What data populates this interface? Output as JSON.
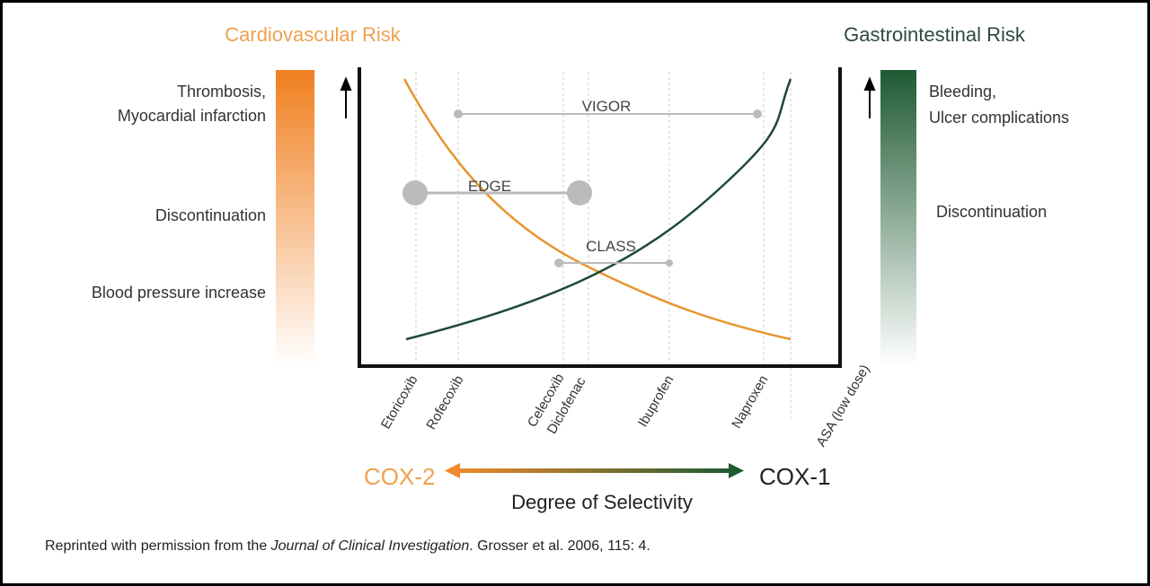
{
  "title_left": "Cardiovascular Risk",
  "title_right": "Gastrointestinal Risk",
  "left_labels": [
    "Thrombosis,",
    "Myocardial infarction",
    "Discontinuation",
    "Blood pressure increase"
  ],
  "right_labels": [
    "Bleeding,",
    "Ulcer complications",
    "Discontinuation"
  ],
  "trials": [
    "VIGOR",
    "EDGE",
    "CLASS"
  ],
  "drugs": [
    "Etoricoxib",
    "Rofecoxib",
    "Celecoxib",
    "Diclofenac",
    "Ibuprofen",
    "Naproxen",
    "ASA (low dose)"
  ],
  "selectivity": {
    "left": "COX-2",
    "right": "COX-1",
    "label": "Degree of Selectivity"
  },
  "citation": {
    "before": "Reprinted with permission from the ",
    "journal": "Journal of Clinical Investigation",
    "after": ".  Grosser et al. 2006, 115: 4."
  }
}
